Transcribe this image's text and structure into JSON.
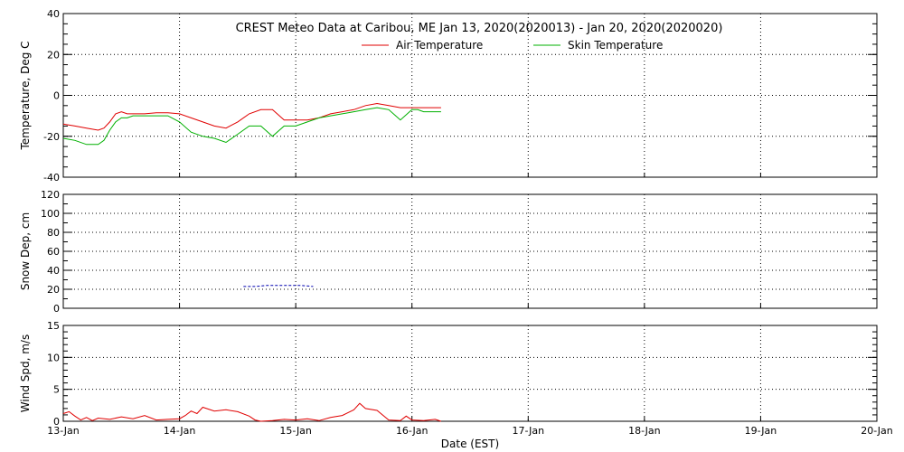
{
  "title": "CREST Meteo Data at Caribou, ME   Jan 13, 2020(2020013) - Jan 20, 2020(2020020)",
  "xlabel": "Date (EST)",
  "x_ticks": [
    "13-Jan",
    "14-Jan",
    "15-Jan",
    "16-Jan",
    "17-Jan",
    "18-Jan",
    "19-Jan",
    "20-Jan"
  ],
  "colors": {
    "air": "#e00000",
    "skin": "#00b000",
    "snow": "#0000b0",
    "wind": "#e00000",
    "frame": "#000000"
  },
  "chart_data": [
    {
      "type": "line",
      "ylabel": "Temperature, Deg C",
      "xlim": [
        0,
        7
      ],
      "ylim": [
        -40,
        40
      ],
      "y_ticks": [
        "-40",
        "-20",
        "0",
        "20",
        "40"
      ],
      "grid": true,
      "legend_position": "top-center",
      "series": [
        {
          "name": "Air Temperature",
          "color": "#e00000",
          "x": [
            0.0,
            0.1,
            0.2,
            0.3,
            0.35,
            0.4,
            0.45,
            0.5,
            0.55,
            0.6,
            0.7,
            0.8,
            0.9,
            1.0,
            1.1,
            1.2,
            1.3,
            1.4,
            1.5,
            1.6,
            1.7,
            1.8,
            1.9,
            2.0,
            2.1,
            2.2,
            2.3,
            2.4,
            2.5,
            2.6,
            2.7,
            2.8,
            2.9,
            3.0,
            3.05,
            3.1,
            3.15,
            3.2,
            3.25
          ],
          "y": [
            -14,
            -15,
            -16,
            -17,
            -16,
            -13,
            -9,
            -8,
            -9,
            -9,
            -9,
            -8.5,
            -8.5,
            -9,
            -11,
            -13,
            -15,
            -16,
            -13,
            -9,
            -7,
            -7,
            -12,
            -12,
            -12,
            -11,
            -9,
            -8,
            -7,
            -5,
            -4,
            -5,
            -6,
            -6,
            -6,
            -6,
            -6,
            -6,
            -6
          ]
        },
        {
          "name": "Skin Temperature",
          "color": "#00b000",
          "x": [
            0.0,
            0.1,
            0.2,
            0.3,
            0.35,
            0.4,
            0.45,
            0.5,
            0.55,
            0.6,
            0.7,
            0.8,
            0.9,
            1.0,
            1.1,
            1.2,
            1.3,
            1.4,
            1.5,
            1.6,
            1.7,
            1.8,
            1.9,
            2.0,
            2.1,
            2.2,
            2.3,
            2.4,
            2.5,
            2.6,
            2.7,
            2.8,
            2.9,
            3.0,
            3.05,
            3.1,
            3.15,
            3.2,
            3.25
          ],
          "y": [
            -21,
            -22,
            -24,
            -24,
            -22,
            -17,
            -13,
            -11,
            -11,
            -10,
            -10,
            -10,
            -10,
            -13,
            -18,
            -20,
            -21,
            -23,
            -19,
            -15,
            -15,
            -20,
            -15,
            -15,
            -13,
            -11,
            -10,
            -9,
            -8,
            -7,
            -6,
            -7,
            -12,
            -7,
            -7,
            -8,
            -8,
            -8,
            -8
          ]
        }
      ]
    },
    {
      "type": "line",
      "ylabel": "Snow Dep, cm",
      "xlim": [
        0,
        7
      ],
      "ylim": [
        0,
        120
      ],
      "y_ticks": [
        "0",
        "20",
        "40",
        "60",
        "80",
        "100",
        "120"
      ],
      "grid": true,
      "series": [
        {
          "color": "#0000b0",
          "x": [
            1.55,
            1.65,
            1.75,
            1.85,
            1.95,
            2.05,
            2.15
          ],
          "y": [
            23,
            23,
            24,
            24,
            24,
            24,
            23
          ]
        }
      ]
    },
    {
      "type": "line",
      "ylabel": "Wind Spd, m/s",
      "xlim": [
        0,
        7
      ],
      "ylim": [
        0,
        15
      ],
      "y_ticks": [
        "0",
        "5",
        "10",
        "15"
      ],
      "grid": true,
      "series": [
        {
          "color": "#e00000",
          "x": [
            0.0,
            0.05,
            0.1,
            0.15,
            0.2,
            0.25,
            0.3,
            0.4,
            0.5,
            0.6,
            0.7,
            0.8,
            0.9,
            1.0,
            1.05,
            1.1,
            1.15,
            1.2,
            1.3,
            1.4,
            1.5,
            1.6,
            1.65,
            1.7,
            1.8,
            1.9,
            2.0,
            2.1,
            2.2,
            2.3,
            2.4,
            2.5,
            2.55,
            2.6,
            2.7,
            2.8,
            2.9,
            2.95,
            3.0,
            3.1,
            3.2,
            3.25
          ],
          "y": [
            1.2,
            1.5,
            0.8,
            0.2,
            0.6,
            0.1,
            0.5,
            0.3,
            0.7,
            0.4,
            0.9,
            0.2,
            0.3,
            0.4,
            0.9,
            1.6,
            1.2,
            2.2,
            1.6,
            1.8,
            1.5,
            0.8,
            0.2,
            0.0,
            0.1,
            0.3,
            0.2,
            0.4,
            0.1,
            0.6,
            0.9,
            1.8,
            2.8,
            2.0,
            1.7,
            0.2,
            0.1,
            0.8,
            0.2,
            0.1,
            0.3,
            0.0
          ]
        }
      ]
    }
  ]
}
